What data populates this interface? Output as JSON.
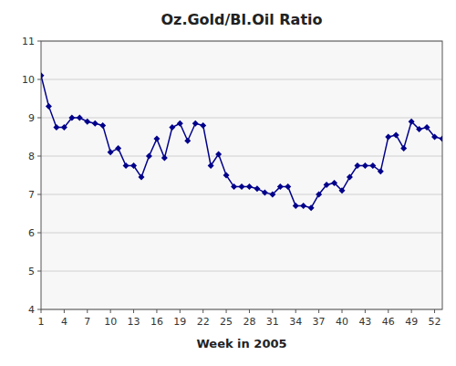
{
  "chart_data": {
    "type": "line",
    "title": "Oz.Gold/Bl.Oil Ratio",
    "xlabel": "Week in 2005",
    "x": [
      1,
      2,
      3,
      4,
      5,
      6,
      7,
      8,
      9,
      10,
      11,
      12,
      13,
      14,
      15,
      16,
      17,
      18,
      19,
      20,
      21,
      22,
      23,
      24,
      25,
      26,
      27,
      28,
      29,
      30,
      31,
      32,
      33,
      34,
      35,
      36,
      37,
      38,
      39,
      40,
      41,
      42,
      43,
      44,
      45,
      46,
      47,
      48,
      49,
      50,
      51,
      52,
      53
    ],
    "values": [
      10.1,
      9.3,
      8.75,
      8.75,
      9.0,
      9.0,
      8.9,
      8.85,
      8.8,
      8.1,
      8.2,
      7.75,
      7.75,
      7.45,
      8.0,
      8.45,
      7.95,
      8.75,
      8.85,
      8.4,
      8.85,
      8.8,
      7.75,
      8.05,
      7.5,
      7.2,
      7.2,
      7.2,
      7.15,
      7.05,
      7.0,
      7.2,
      7.2,
      6.7,
      6.7,
      6.65,
      7.0,
      7.25,
      7.3,
      7.1,
      7.45,
      7.75,
      7.75,
      7.75,
      7.6,
      8.5,
      8.55,
      8.2,
      8.9,
      8.7,
      8.75,
      8.5,
      8.45
    ],
    "color": "#00008b",
    "marker": "diamond",
    "xlim": [
      1,
      53
    ],
    "xticks": [
      1,
      4,
      7,
      10,
      13,
      16,
      19,
      22,
      25,
      28,
      31,
      34,
      37,
      40,
      43,
      46,
      49,
      52
    ],
    "ylim": [
      4,
      11
    ],
    "yticks": [
      4,
      5,
      6,
      7,
      8,
      9,
      10,
      11
    ],
    "grid": true
  }
}
